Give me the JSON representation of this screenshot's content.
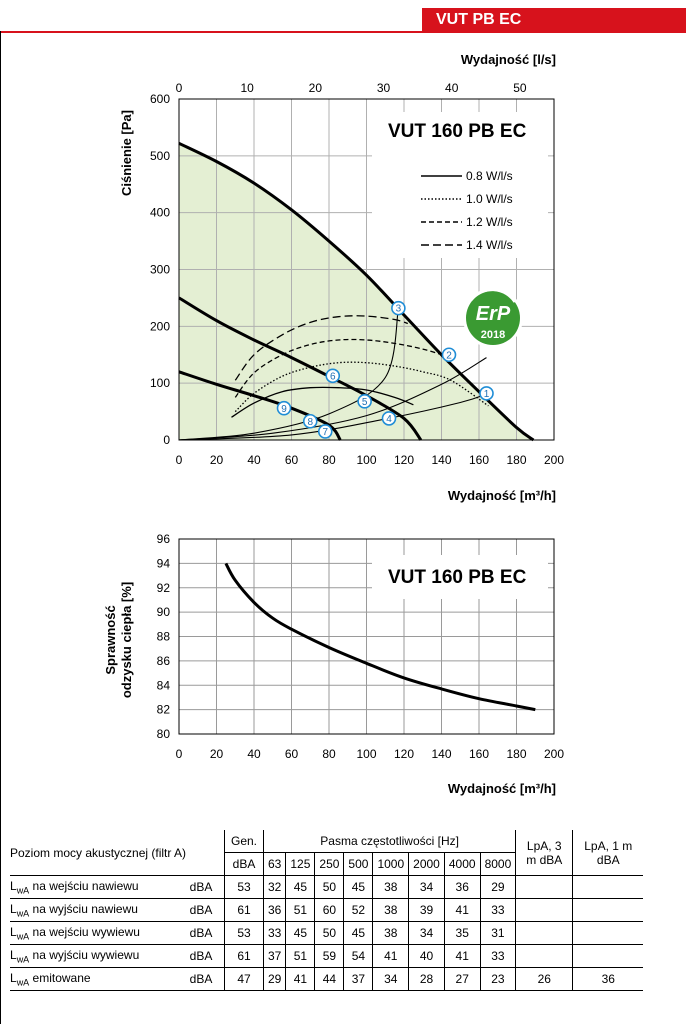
{
  "header": {
    "model_tag": "VUT PB EC"
  },
  "chart1": {
    "title": "VUT 160 PB EC",
    "xlabel_bottom": "Wydajność [m³/h]",
    "xlabel_top": "Wydajność [l/s]",
    "ylabel": "Ciśnienie [Pa]",
    "badge_text": "ErP",
    "badge_year": "2018",
    "legend": [
      "0.8 W/l/s",
      "1.0 W/l/s",
      "1.2 W/l/s",
      "1.4 W/l/s"
    ],
    "point_labels": [
      "1",
      "2",
      "3",
      "4",
      "5",
      "6",
      "7",
      "8",
      "9"
    ]
  },
  "chart2": {
    "title": "VUT 160 PB EC",
    "xlabel": "Wydajność [m³/h]",
    "ylabel_line1": "Sprawność",
    "ylabel_line2": "odzysku ciepła [%]"
  },
  "chart_data": [
    {
      "type": "line",
      "title": "VUT 160 PB EC",
      "xlabel": "Wydajność [m³/h]",
      "x2label": "Wydajność [l/s]",
      "ylabel": "Ciśnienie [Pa]",
      "xlim": [
        0,
        200
      ],
      "x2lim": [
        0,
        55
      ],
      "ylim": [
        0,
        600
      ],
      "xticks": [
        0,
        20,
        40,
        60,
        80,
        100,
        120,
        140,
        160,
        180,
        200
      ],
      "x2ticks": [
        0,
        10,
        20,
        30,
        40,
        50
      ],
      "yticks": [
        0,
        100,
        200,
        300,
        400,
        500,
        600
      ],
      "grid": true,
      "legend_position": "top-right",
      "fan_curves": [
        {
          "points": [
            [
              0,
              522
            ],
            [
              20,
              490
            ],
            [
              40,
              452
            ],
            [
              60,
              405
            ],
            [
              80,
              350
            ],
            [
              100,
              290
            ],
            [
              120,
              220
            ],
            [
              140,
              150
            ],
            [
              160,
              85
            ],
            [
              180,
              22
            ],
            [
              189,
              0
            ]
          ]
        },
        {
          "points": [
            [
              0,
              250
            ],
            [
              20,
              210
            ],
            [
              40,
              176
            ],
            [
              60,
              145
            ],
            [
              80,
              112
            ],
            [
              100,
              78
            ],
            [
              120,
              38
            ],
            [
              129,
              0
            ]
          ]
        },
        {
          "points": [
            [
              0,
              120
            ],
            [
              20,
              98
            ],
            [
              40,
              78
            ],
            [
              60,
              56
            ],
            [
              80,
              26
            ],
            [
              86,
              0
            ]
          ]
        }
      ],
      "operating_area_upper": [
        [
          0,
          522
        ],
        [
          20,
          490
        ],
        [
          40,
          452
        ],
        [
          60,
          405
        ],
        [
          80,
          350
        ],
        [
          100,
          290
        ],
        [
          120,
          220
        ],
        [
          140,
          150
        ],
        [
          160,
          85
        ],
        [
          180,
          22
        ],
        [
          189,
          0
        ]
      ],
      "legend_entries": [
        {
          "name": "0.8 W/l/s",
          "style": "solid"
        },
        {
          "name": "1.0 W/l/s",
          "style": "dotted"
        },
        {
          "name": "1.2 W/l/s",
          "style": "short-dash"
        },
        {
          "name": "1.4 W/l/s",
          "style": "long-dash"
        }
      ],
      "sfp_curves": [
        {
          "name": "0.8 W/l/s",
          "style": "solid",
          "points": [
            [
              28,
              40
            ],
            [
              40,
              65
            ],
            [
              55,
              85
            ],
            [
              70,
              92
            ],
            [
              85,
              92
            ],
            [
              100,
              88
            ],
            [
              115,
              75
            ],
            [
              125,
              62
            ]
          ]
        },
        {
          "name": "1.0 W/l/s",
          "style": "dotted",
          "points": [
            [
              30,
              50
            ],
            [
              40,
              82
            ],
            [
              55,
              112
            ],
            [
              70,
              128
            ],
            [
              85,
              136
            ],
            [
              100,
              136
            ],
            [
              115,
              130
            ],
            [
              130,
              120
            ],
            [
              145,
              105
            ],
            [
              165,
              60
            ]
          ]
        },
        {
          "name": "1.2 W/l/s",
          "style": "short-dash",
          "points": [
            [
              30,
              75
            ],
            [
              40,
              118
            ],
            [
              55,
              150
            ],
            [
              70,
              168
            ],
            [
              85,
              176
            ],
            [
              100,
              176
            ],
            [
              115,
              170
            ],
            [
              130,
              160
            ],
            [
              145,
              145
            ]
          ]
        },
        {
          "name": "1.4 W/l/s",
          "style": "long-dash",
          "points": [
            [
              30,
              105
            ],
            [
              40,
              150
            ],
            [
              55,
              185
            ],
            [
              70,
              207
            ],
            [
              85,
              217
            ],
            [
              100,
              218
            ],
            [
              115,
              212
            ],
            [
              122,
              205
            ]
          ]
        }
      ],
      "system_curves": [
        {
          "points": [
            [
              0,
              0
            ],
            [
              40,
              12
            ],
            [
              80,
              46
            ],
            [
              110,
              110
            ],
            [
              117,
              232
            ]
          ]
        },
        {
          "points": [
            [
              0,
              0
            ],
            [
              50,
              12
            ],
            [
              100,
              43
            ],
            [
              140,
              98
            ],
            [
              164,
              145
            ]
          ]
        },
        {
          "points": [
            [
              0,
              0
            ],
            [
              60,
              9
            ],
            [
              110,
              37
            ],
            [
              150,
              66
            ],
            [
              165,
              82
            ]
          ]
        }
      ],
      "operating_points": [
        {
          "label": "1",
          "x": 164,
          "y": 82
        },
        {
          "label": "2",
          "x": 144,
          "y": 150
        },
        {
          "label": "3",
          "x": 117,
          "y": 232
        },
        {
          "label": "4",
          "x": 112,
          "y": 38
        },
        {
          "label": "5",
          "x": 99,
          "y": 68
        },
        {
          "label": "6",
          "x": 82,
          "y": 113
        },
        {
          "label": "7",
          "x": 78,
          "y": 15
        },
        {
          "label": "8",
          "x": 70,
          "y": 33
        },
        {
          "label": "9",
          "x": 56,
          "y": 56
        }
      ]
    },
    {
      "type": "line",
      "title": "VUT 160 PB EC",
      "xlabel": "Wydajność [m³/h]",
      "ylabel": "Sprawność odzysku ciepła [%]",
      "xlim": [
        0,
        200
      ],
      "ylim": [
        80,
        96
      ],
      "xticks": [
        0,
        20,
        40,
        60,
        80,
        100,
        120,
        140,
        160,
        180,
        200
      ],
      "yticks": [
        80,
        82,
        84,
        86,
        88,
        90,
        92,
        94,
        96
      ],
      "grid": true,
      "series": [
        {
          "points": [
            [
              25,
              94
            ],
            [
              30,
              92.6
            ],
            [
              40,
              90.8
            ],
            [
              50,
              89.5
            ],
            [
              60,
              88.6
            ],
            [
              80,
              87.1
            ],
            [
              100,
              85.8
            ],
            [
              120,
              84.6
            ],
            [
              140,
              83.7
            ],
            [
              160,
              82.9
            ],
            [
              180,
              82.3
            ],
            [
              190,
              82
            ]
          ]
        }
      ]
    }
  ],
  "table": {
    "row_header": "Poziom mocy akustycznej (filtr A)",
    "gen_header": "Gen.",
    "bands_header": "Pasma częstotliwości [Hz]",
    "lpa3_header": "LpA, 3 m dBA",
    "lpa1_header": "LpA, 1 m dBA",
    "gen_unit": "dBA",
    "bands": [
      "63",
      "125",
      "250",
      "500",
      "1000",
      "2000",
      "4000",
      "8000"
    ],
    "rows": [
      {
        "label_sub": "wA",
        "label_rest": " na wejściu nawiewu",
        "unit": "dBA",
        "gen": "53",
        "values": [
          "32",
          "45",
          "50",
          "45",
          "38",
          "34",
          "36",
          "29"
        ],
        "lpa3": "",
        "lpa1": ""
      },
      {
        "label_sub": "wA",
        "label_rest": " na wyjściu nawiewu",
        "unit": "dBA",
        "gen": "61",
        "values": [
          "36",
          "51",
          "60",
          "52",
          "38",
          "39",
          "41",
          "33"
        ],
        "lpa3": "",
        "lpa1": ""
      },
      {
        "label_sub": "wA",
        "label_rest": " na wejściu wywiewu",
        "unit": "dBA",
        "gen": "53",
        "values": [
          "33",
          "45",
          "50",
          "45",
          "38",
          "34",
          "35",
          "31"
        ],
        "lpa3": "",
        "lpa1": ""
      },
      {
        "label_sub": "wA",
        "label_rest": " na wyjściu wywiewu",
        "unit": "dBA",
        "gen": "61",
        "values": [
          "37",
          "51",
          "59",
          "54",
          "41",
          "40",
          "41",
          "33"
        ],
        "lpa3": "",
        "lpa1": ""
      },
      {
        "label_sub": "wA",
        "label_rest": " emitowane",
        "unit": "dBA",
        "gen": "47",
        "values": [
          "29",
          "41",
          "44",
          "37",
          "34",
          "28",
          "27",
          "23"
        ],
        "lpa3": "26",
        "lpa1": "36"
      }
    ]
  }
}
